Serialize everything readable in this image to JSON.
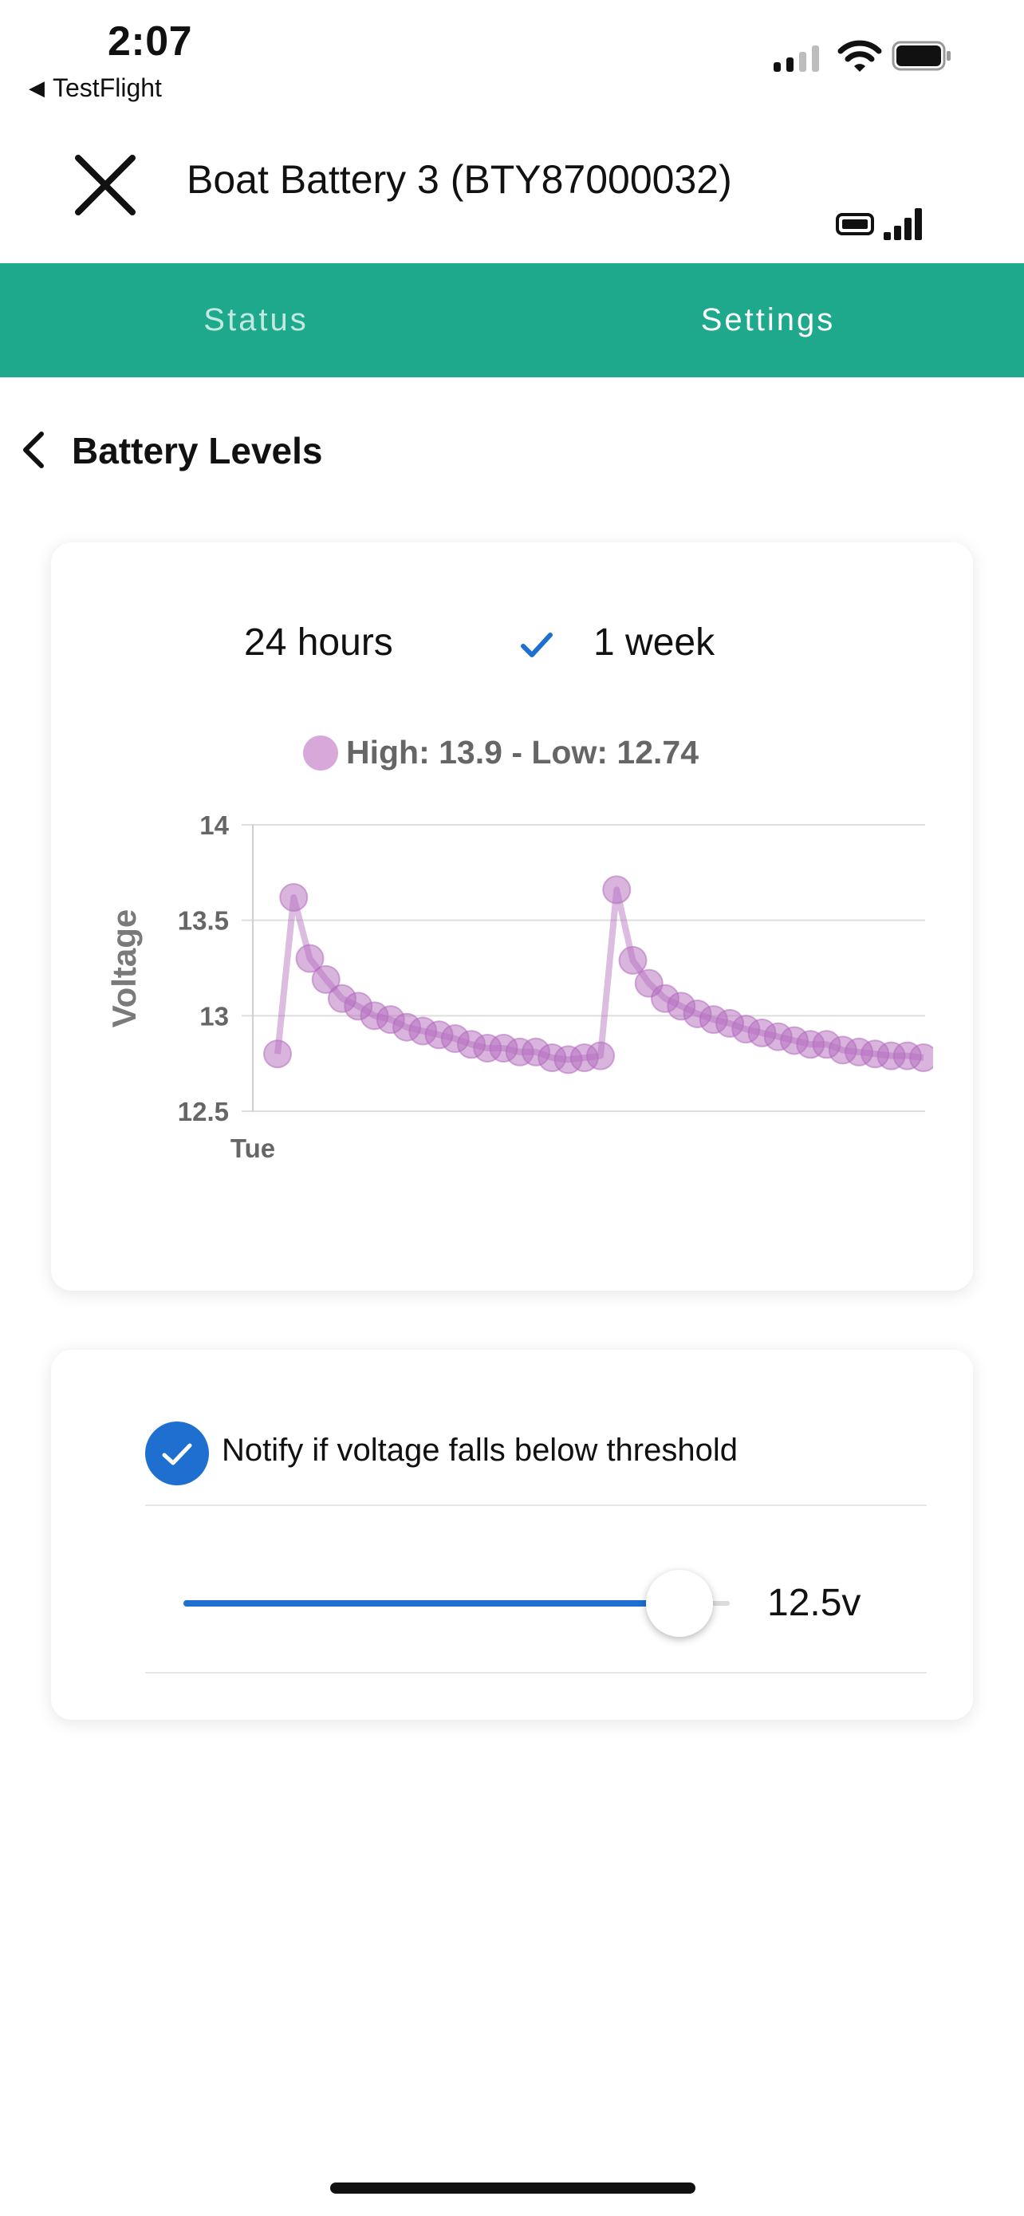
{
  "status_bar": {
    "time": "2:07",
    "back_app": "TestFlight"
  },
  "header": {
    "title": "Boat Battery 3 (BTY87000032)",
    "close_icon": "close-icon",
    "status_icons": [
      "battery-icon",
      "signal-icon"
    ]
  },
  "tabs": [
    {
      "label": "Status",
      "selected": false
    },
    {
      "label": "Settings",
      "selected": true
    }
  ],
  "section": {
    "back_icon": "chevron-left-icon",
    "title": "Battery Levels"
  },
  "range": {
    "options": [
      "24 hours",
      "1 week"
    ],
    "selected": "1 week"
  },
  "legend": {
    "text": "High: 13.9 - Low: 12.74",
    "color": "#d8a8da"
  },
  "chart_data": {
    "type": "line",
    "ylabel": "Voltage",
    "ylim": [
      12.5,
      14
    ],
    "yticks": [
      "14",
      "13.5",
      "13",
      "12.5"
    ],
    "xticks": [
      "Tue"
    ],
    "grid": true,
    "series": [
      {
        "color": "#b36bbd",
        "values": [
          12.8,
          13.62,
          13.3,
          13.19,
          13.09,
          13.05,
          13.0,
          12.98,
          12.94,
          12.92,
          12.9,
          12.88,
          12.85,
          12.83,
          12.83,
          12.81,
          12.81,
          12.78,
          12.77,
          12.78,
          12.79,
          13.66,
          13.29,
          13.17,
          13.09,
          13.05,
          13.01,
          12.98,
          12.96,
          12.93,
          12.91,
          12.89,
          12.87,
          12.85,
          12.85,
          12.82,
          12.81,
          12.8,
          12.79,
          12.79,
          12.78
        ]
      }
    ]
  },
  "notify": {
    "label": "Notify if voltage falls below threshold",
    "checked": true,
    "threshold_value": "12.5v",
    "slider_fraction": 0.88
  },
  "colors": {
    "accent": "#1fa98c",
    "blue": "#1e6fd0"
  }
}
